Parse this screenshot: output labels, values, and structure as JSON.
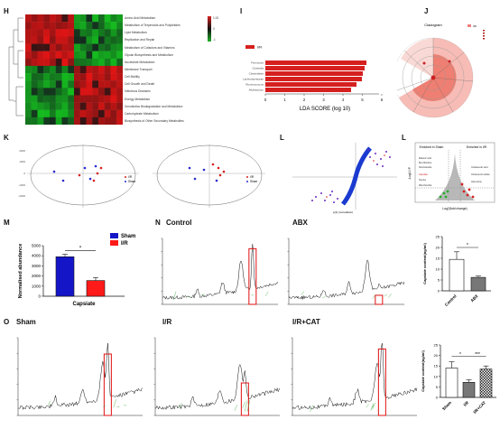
{
  "panels": {
    "H": "H",
    "I": "I",
    "J": "J",
    "K": "K",
    "L1": "L",
    "L2": "L",
    "M": "M",
    "N": "N",
    "O": "O"
  },
  "heatmap": {
    "rows": [
      "Amino Acid Metabolism",
      "Metabolism of Terpenoids and Polyketides",
      "Lipid Metabolism",
      "Replication and Repair",
      "Metabolism of Cofactors and Vitamins",
      "Glycan Biosynthesis and Metabolism",
      "Nucleotide Metabolism",
      "Membrane Transport",
      "Cell Motility",
      "Cell Growth and Death",
      "Infectious Diseases",
      "Energy Metabolism",
      "Xenobiotics Biodegradation and Metabolism",
      "Carbohydrate Metabolism",
      "Biosynthesis of Other Secondary Metabolites"
    ],
    "scale": [
      "1.00",
      "0",
      "-1"
    ],
    "colors": {
      "high": "#d62020",
      "low": "#22b02a",
      "mid": "#111111"
    }
  },
  "lda": {
    "legend": "I/R",
    "xlabel": "LDA SCORE (log 10)",
    "ticks": [
      "0",
      "1",
      "2",
      "3",
      "4",
      "5",
      "6"
    ],
    "bar_color": "#d62020"
  },
  "cladogram": {
    "title": "Cladogram",
    "legend": "I/R"
  },
  "pca": {
    "legend": [
      "I/R",
      "Sham"
    ],
    "colors": {
      "ir": "#d62020",
      "sham": "#2a2ad0"
    }
  },
  "scatter_L": {
    "xlabel": "p(1) (correlation)"
  },
  "volcano": {
    "left_title": "Enriched in Sham",
    "right_title": "Enriched in I/R",
    "ylabel": "-Log10 P",
    "xlabel": "Log2(fold change)",
    "left_items": [
      "Capsiate",
      "Taurine",
      "Mitochondria"
    ],
    "right_items": [
      "Indoleacetic acid",
      "Cholesterol sulfate",
      "Adenosine"
    ]
  },
  "chart_data": [
    {
      "type": "bar",
      "title": "",
      "categories": [
        "Sham",
        "I/R"
      ],
      "values": [
        3900,
        1550
      ],
      "errors": [
        250,
        300
      ],
      "xlabel": "Capsiate",
      "ylabel": "Normalised abundance",
      "ylim": [
        0,
        5000
      ],
      "yticks": [
        0,
        1000,
        2000,
        3000,
        4000,
        5000
      ],
      "legend": [
        "Sham",
        "I/R"
      ],
      "colors": [
        "#1515c8",
        "#ff1a1a"
      ],
      "significance": "*"
    },
    {
      "type": "bar",
      "title": "",
      "categories": [
        "Control",
        "ABX"
      ],
      "values": [
        14.5,
        6.2
      ],
      "errors": [
        3.5,
        0.6
      ],
      "ylabel": "Capsiate content(ng/ml)",
      "ylim": [
        0,
        25
      ],
      "yticks": [
        0,
        5,
        10,
        15,
        20,
        25
      ],
      "significance": "*"
    },
    {
      "type": "bar",
      "title": "",
      "categories": [
        "Sham",
        "I/R",
        "I/R+CAT"
      ],
      "values": [
        14,
        7.2,
        13.5
      ],
      "errors": [
        3,
        1.2,
        1.5
      ],
      "ylabel": "Capsiate content(ng/ml)",
      "ylim": [
        0,
        25
      ],
      "yticks": [
        0,
        5,
        10,
        15,
        20,
        25
      ],
      "significance": [
        "*",
        "***"
      ]
    }
  ],
  "chromatograms": {
    "row1": [
      "Control",
      "ABX"
    ],
    "row2": [
      "Sham",
      "I/R",
      "I/R+CAT"
    ]
  }
}
